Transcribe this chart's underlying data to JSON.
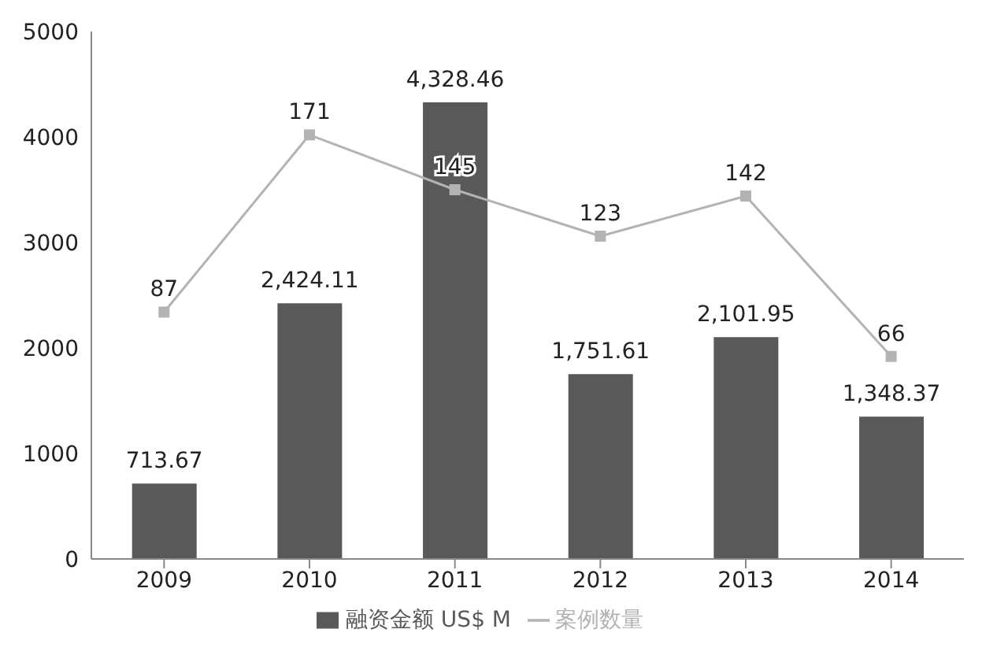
{
  "chart_data": {
    "type": "bar",
    "categories": [
      "2009",
      "2010",
      "2011",
      "2012",
      "2013",
      "2014"
    ],
    "series": [
      {
        "name": "融资金额 US$ M",
        "color": "#595959",
        "values": [
          713.67,
          2424.11,
          4328.46,
          1751.61,
          2101.95,
          1348.37
        ],
        "value_labels": [
          "713.67",
          "2,424.11",
          "4,328.46",
          "1,751.61",
          "2,101.95",
          "1,348.37"
        ]
      },
      {
        "name": "案例数量",
        "type": "line",
        "axis": "y2",
        "color": "#b3b3b3",
        "marker": "square",
        "values": [
          87,
          171,
          145,
          123,
          142,
          66
        ],
        "value_labels": [
          "87",
          "171",
          "145",
          "123",
          "142",
          "66"
        ]
      }
    ],
    "ylim": [
      0,
      5000
    ],
    "yticks": [
      0,
      1000,
      2000,
      3000,
      4000,
      5000
    ],
    "y2lim": [
      -30,
      220
    ],
    "grid": false,
    "legend": "bottom"
  }
}
